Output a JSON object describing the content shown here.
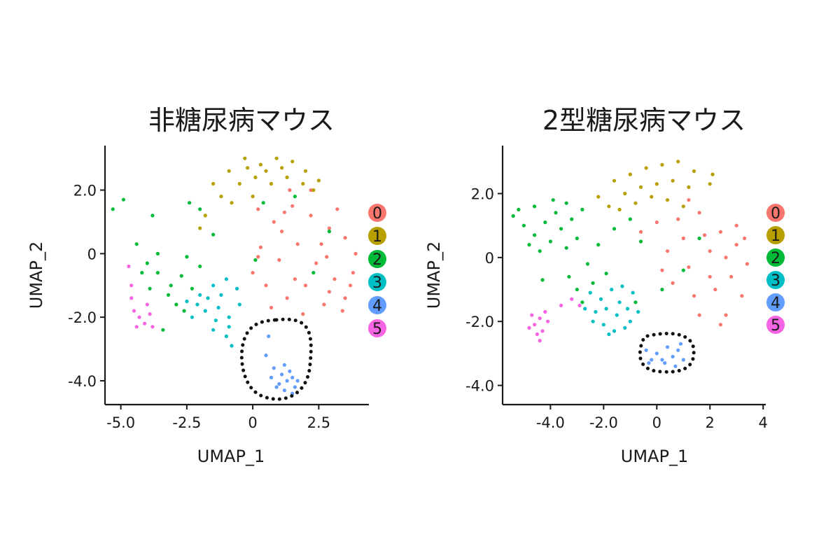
{
  "chart_data": [
    {
      "type": "scatter",
      "title": "非糖尿病マウス",
      "xlabel": "UMAP_1",
      "ylabel": "UMAP_2",
      "xlim": [
        -5.6,
        4.4
      ],
      "ylim": [
        -4.75,
        3.4
      ],
      "x_ticks": [
        -5.0,
        -2.5,
        0,
        2.5
      ],
      "x_tick_labels": [
        "-5.0",
        "-2.5",
        "0",
        "2.5"
      ],
      "y_ticks": [
        2.0,
        0,
        -2.0,
        -4.0
      ],
      "y_tick_labels": [
        "2.0",
        "0",
        "-2.0",
        "-4.0"
      ],
      "legend_position": "right",
      "series": [
        {
          "name": "0",
          "color": "#F8766D",
          "values": [
            [
              0.2,
              1.4
            ],
            [
              0.8,
              1.0
            ],
            [
              1.5,
              1.5
            ],
            [
              2.2,
              1.2
            ],
            [
              2.9,
              0.8
            ],
            [
              3.5,
              0.5
            ],
            [
              3.9,
              0.0
            ],
            [
              0.3,
              0.2
            ],
            [
              1.0,
              -0.2
            ],
            [
              1.7,
              0.3
            ],
            [
              2.4,
              -0.3
            ],
            [
              3.1,
              -0.8
            ],
            [
              3.7,
              -1.0
            ],
            [
              0.5,
              -1.0
            ],
            [
              1.3,
              -1.4
            ],
            [
              2.0,
              -1.0
            ],
            [
              2.7,
              -1.6
            ],
            [
              3.4,
              -1.8
            ],
            [
              0.0,
              -0.6
            ],
            [
              1.1,
              0.7
            ],
            [
              2.6,
              0.3
            ],
            [
              3.2,
              1.4
            ],
            [
              1.9,
              -1.9
            ],
            [
              0.7,
              -1.7
            ],
            [
              1.4,
              2.0
            ],
            [
              2.2,
              2.0
            ],
            [
              3.8,
              -0.6
            ],
            [
              2.9,
              -1.2
            ],
            [
              0.2,
              -0.1
            ],
            [
              1.6,
              -0.8
            ],
            [
              2.8,
              -0.1
            ],
            [
              3.5,
              -1.4
            ],
            [
              1.2,
              1.3
            ]
          ]
        },
        {
          "name": "1",
          "color": "#B79F00",
          "values": [
            [
              -1.5,
              2.2
            ],
            [
              -0.9,
              2.6
            ],
            [
              -0.3,
              3.0
            ],
            [
              0.3,
              2.8
            ],
            [
              0.9,
              3.0
            ],
            [
              1.5,
              2.9
            ],
            [
              2.0,
              2.6
            ],
            [
              2.5,
              2.3
            ],
            [
              -1.2,
              1.8
            ],
            [
              -0.5,
              2.2
            ],
            [
              0.1,
              2.4
            ],
            [
              0.7,
              2.2
            ],
            [
              1.3,
              2.4
            ],
            [
              1.9,
              2.2
            ],
            [
              -0.8,
              1.6
            ],
            [
              0.0,
              1.8
            ],
            [
              0.5,
              2.6
            ],
            [
              1.1,
              2.7
            ],
            [
              -1.8,
              1.2
            ],
            [
              -2.0,
              0.8
            ],
            [
              -0.2,
              2.7
            ],
            [
              2.3,
              2.0
            ]
          ]
        },
        {
          "name": "2",
          "color": "#00BA38",
          "values": [
            [
              -5.3,
              1.4
            ],
            [
              -4.9,
              1.7
            ],
            [
              -4.4,
              0.3
            ],
            [
              -4.0,
              -0.3
            ],
            [
              -3.6,
              -0.6
            ],
            [
              -3.1,
              -1.0
            ],
            [
              -2.7,
              -0.7
            ],
            [
              -2.3,
              -1.1
            ],
            [
              -2.9,
              -1.6
            ],
            [
              -3.9,
              -1.1
            ],
            [
              -4.2,
              -0.6
            ],
            [
              -2.0,
              -0.4
            ],
            [
              -2.5,
              -0.1
            ],
            [
              -1.5,
              0.6
            ],
            [
              -3.6,
              0.0
            ],
            [
              -2.4,
              1.6
            ],
            [
              -3.8,
              1.2
            ],
            [
              0.4,
              1.6
            ],
            [
              1.6,
              1.8
            ],
            [
              2.9,
              0.7
            ],
            [
              0.1,
              -0.2
            ],
            [
              2.3,
              -0.6
            ],
            [
              -3.2,
              -1.3
            ],
            [
              -2.0,
              1.4
            ],
            [
              -2.6,
              -1.8
            ],
            [
              -3.4,
              -2.4
            ]
          ]
        },
        {
          "name": "3",
          "color": "#00BFC4",
          "values": [
            [
              -2.5,
              -1.5
            ],
            [
              -2.0,
              -1.3
            ],
            [
              -1.5,
              -1.0
            ],
            [
              -1.0,
              -0.8
            ],
            [
              -0.6,
              -1.1
            ],
            [
              -2.3,
              -2.0
            ],
            [
              -1.8,
              -1.8
            ],
            [
              -1.3,
              -1.7
            ],
            [
              -0.9,
              -2.0
            ],
            [
              -1.5,
              -2.4
            ],
            [
              -1.0,
              -2.6
            ],
            [
              -0.8,
              -2.9
            ],
            [
              -1.2,
              -1.3
            ],
            [
              -0.5,
              -1.6
            ],
            [
              -1.7,
              -1.4
            ],
            [
              -2.1,
              -1.6
            ],
            [
              -0.9,
              -2.3
            ],
            [
              -1.4,
              -2.1
            ]
          ]
        },
        {
          "name": "4",
          "color": "#619CFF",
          "values": [
            [
              0.8,
              -3.6
            ],
            [
              1.1,
              -3.8
            ],
            [
              1.3,
              -4.0
            ],
            [
              1.5,
              -3.9
            ],
            [
              0.9,
              -4.2
            ],
            [
              1.2,
              -4.3
            ],
            [
              1.6,
              -4.2
            ],
            [
              0.7,
              -3.9
            ],
            [
              1.4,
              -3.7
            ],
            [
              1.0,
              -4.1
            ],
            [
              1.7,
              -4.0
            ],
            [
              1.2,
              -3.5
            ],
            [
              0.6,
              -2.6
            ],
            [
              0.5,
              -3.2
            ],
            [
              1.5,
              -4.4
            ]
          ]
        },
        {
          "name": "5",
          "color": "#F564E3",
          "values": [
            [
              -4.7,
              -0.4
            ],
            [
              -4.6,
              -1.4
            ],
            [
              -4.5,
              -1.8
            ],
            [
              -4.3,
              -2.0
            ],
            [
              -4.1,
              -2.2
            ],
            [
              -4.4,
              -2.3
            ],
            [
              -3.9,
              -1.9
            ],
            [
              -3.8,
              -2.3
            ],
            [
              -4.6,
              -1.0
            ],
            [
              -4.0,
              -1.6
            ]
          ]
        }
      ]
    },
    {
      "type": "scatter",
      "title": "2型糖尿病マウス",
      "xlabel": "UMAP_1",
      "ylabel": "UMAP_2",
      "xlim": [
        -5.8,
        4.1
      ],
      "ylim": [
        -4.6,
        3.5
      ],
      "x_ticks": [
        -4.0,
        -2.0,
        0,
        2,
        4
      ],
      "x_tick_labels": [
        "-4.0",
        "-2.0",
        "0",
        "2",
        "4"
      ],
      "y_ticks": [
        2.0,
        0,
        -2.0,
        -4.0
      ],
      "y_tick_labels": [
        "2.0",
        "0",
        "-2.0",
        "-4.0"
      ],
      "legend_position": "right",
      "series": [
        {
          "name": "0",
          "color": "#F8766D",
          "values": [
            [
              0.0,
              1.1
            ],
            [
              0.8,
              1.2
            ],
            [
              1.6,
              1.4
            ],
            [
              2.4,
              0.8
            ],
            [
              3.0,
              0.4
            ],
            [
              3.4,
              -0.2
            ],
            [
              0.4,
              0.2
            ],
            [
              1.2,
              -0.3
            ],
            [
              2.0,
              0.2
            ],
            [
              2.8,
              -0.6
            ],
            [
              3.2,
              -1.2
            ],
            [
              0.6,
              -0.8
            ],
            [
              1.4,
              -1.2
            ],
            [
              2.2,
              -1.0
            ],
            [
              2.6,
              -1.8
            ],
            [
              1.0,
              0.6
            ],
            [
              1.8,
              0.7
            ],
            [
              2.6,
              0.0
            ],
            [
              3.3,
              0.6
            ],
            [
              0.2,
              -0.4
            ],
            [
              1.6,
              -1.8
            ],
            [
              2.4,
              -2.1
            ],
            [
              -0.6,
              0.8
            ],
            [
              1.2,
              1.8
            ],
            [
              3.0,
              1.0
            ],
            [
              2.0,
              -0.6
            ]
          ]
        },
        {
          "name": "1",
          "color": "#B79F00",
          "values": [
            [
              -2.2,
              1.9
            ],
            [
              -1.6,
              2.4
            ],
            [
              -1.0,
              2.6
            ],
            [
              -0.4,
              2.8
            ],
            [
              0.2,
              2.9
            ],
            [
              0.8,
              3.0
            ],
            [
              1.4,
              2.7
            ],
            [
              2.0,
              2.3
            ],
            [
              -1.8,
              1.6
            ],
            [
              -1.2,
              2.0
            ],
            [
              -0.6,
              2.2
            ],
            [
              0.0,
              2.3
            ],
            [
              0.6,
              2.4
            ],
            [
              1.2,
              2.2
            ],
            [
              -1.4,
              1.5
            ],
            [
              -0.8,
              1.7
            ],
            [
              -0.2,
              1.9
            ],
            [
              0.4,
              1.8
            ],
            [
              2.1,
              2.6
            ],
            [
              1.0,
              1.6
            ]
          ]
        },
        {
          "name": "2",
          "color": "#00BA38",
          "values": [
            [
              -5.4,
              1.3
            ],
            [
              -5.0,
              1.0
            ],
            [
              -4.6,
              0.7
            ],
            [
              -4.2,
              1.1
            ],
            [
              -3.8,
              1.4
            ],
            [
              -3.4,
              1.7
            ],
            [
              -4.8,
              0.4
            ],
            [
              -4.4,
              0.2
            ],
            [
              -4.0,
              0.5
            ],
            [
              -3.6,
              0.9
            ],
            [
              -3.2,
              1.2
            ],
            [
              -2.8,
              1.5
            ],
            [
              -3.4,
              0.3
            ],
            [
              -3.0,
              0.6
            ],
            [
              -2.6,
              -0.2
            ],
            [
              -2.4,
              -0.8
            ],
            [
              -3.0,
              -1.0
            ],
            [
              -3.3,
              -0.6
            ],
            [
              -2.8,
              -1.4
            ],
            [
              -4.3,
              -0.7
            ],
            [
              -2.2,
              0.4
            ],
            [
              -1.6,
              0.9
            ],
            [
              -1.0,
              1.2
            ],
            [
              -0.6,
              0.5
            ],
            [
              0.2,
              -1.0
            ],
            [
              1.0,
              -0.4
            ],
            [
              1.6,
              0.6
            ],
            [
              -0.8,
              -1.4
            ],
            [
              -5.2,
              1.5
            ],
            [
              -4.6,
              1.6
            ],
            [
              -3.9,
              1.8
            ],
            [
              -1.9,
              -0.5
            ]
          ]
        },
        {
          "name": "3",
          "color": "#00BFC4",
          "values": [
            [
              -2.5,
              -1.1
            ],
            [
              -2.1,
              -1.3
            ],
            [
              -1.7,
              -1.0
            ],
            [
              -1.3,
              -0.9
            ],
            [
              -0.9,
              -1.1
            ],
            [
              -2.3,
              -1.7
            ],
            [
              -1.9,
              -1.6
            ],
            [
              -1.5,
              -1.8
            ],
            [
              -1.1,
              -1.6
            ],
            [
              -2.0,
              -2.1
            ],
            [
              -1.6,
              -2.3
            ],
            [
              -1.2,
              -2.2
            ],
            [
              -2.7,
              -1.6
            ],
            [
              -0.7,
              -1.7
            ],
            [
              -1.4,
              -1.4
            ],
            [
              -1.8,
              -2.4
            ],
            [
              -1.0,
              -2.0
            ],
            [
              -2.4,
              -2.0
            ]
          ]
        },
        {
          "name": "4",
          "color": "#619CFF",
          "values": [
            [
              -0.4,
              -2.9
            ],
            [
              -0.2,
              -3.2
            ],
            [
              0.0,
              -3.0
            ],
            [
              0.2,
              -3.2
            ],
            [
              0.4,
              -2.8
            ],
            [
              0.6,
              -3.1
            ],
            [
              0.8,
              -2.9
            ],
            [
              1.0,
              -3.2
            ],
            [
              0.3,
              -3.3
            ],
            [
              0.7,
              -3.4
            ],
            [
              -0.3,
              -3.3
            ],
            [
              0.9,
              -2.7
            ]
          ]
        },
        {
          "name": "5",
          "color": "#F564E3",
          "values": [
            [
              -4.7,
              -1.8
            ],
            [
              -4.6,
              -2.1
            ],
            [
              -4.4,
              -1.9
            ],
            [
              -4.3,
              -2.3
            ],
            [
              -4.5,
              -2.4
            ],
            [
              -4.2,
              -1.7
            ],
            [
              -4.8,
              -2.2
            ],
            [
              -4.1,
              -2.0
            ],
            [
              -3.6,
              -1.5
            ],
            [
              -3.2,
              -1.3
            ],
            [
              -2.9,
              -1.5
            ],
            [
              -4.4,
              -2.6
            ]
          ]
        }
      ]
    }
  ]
}
